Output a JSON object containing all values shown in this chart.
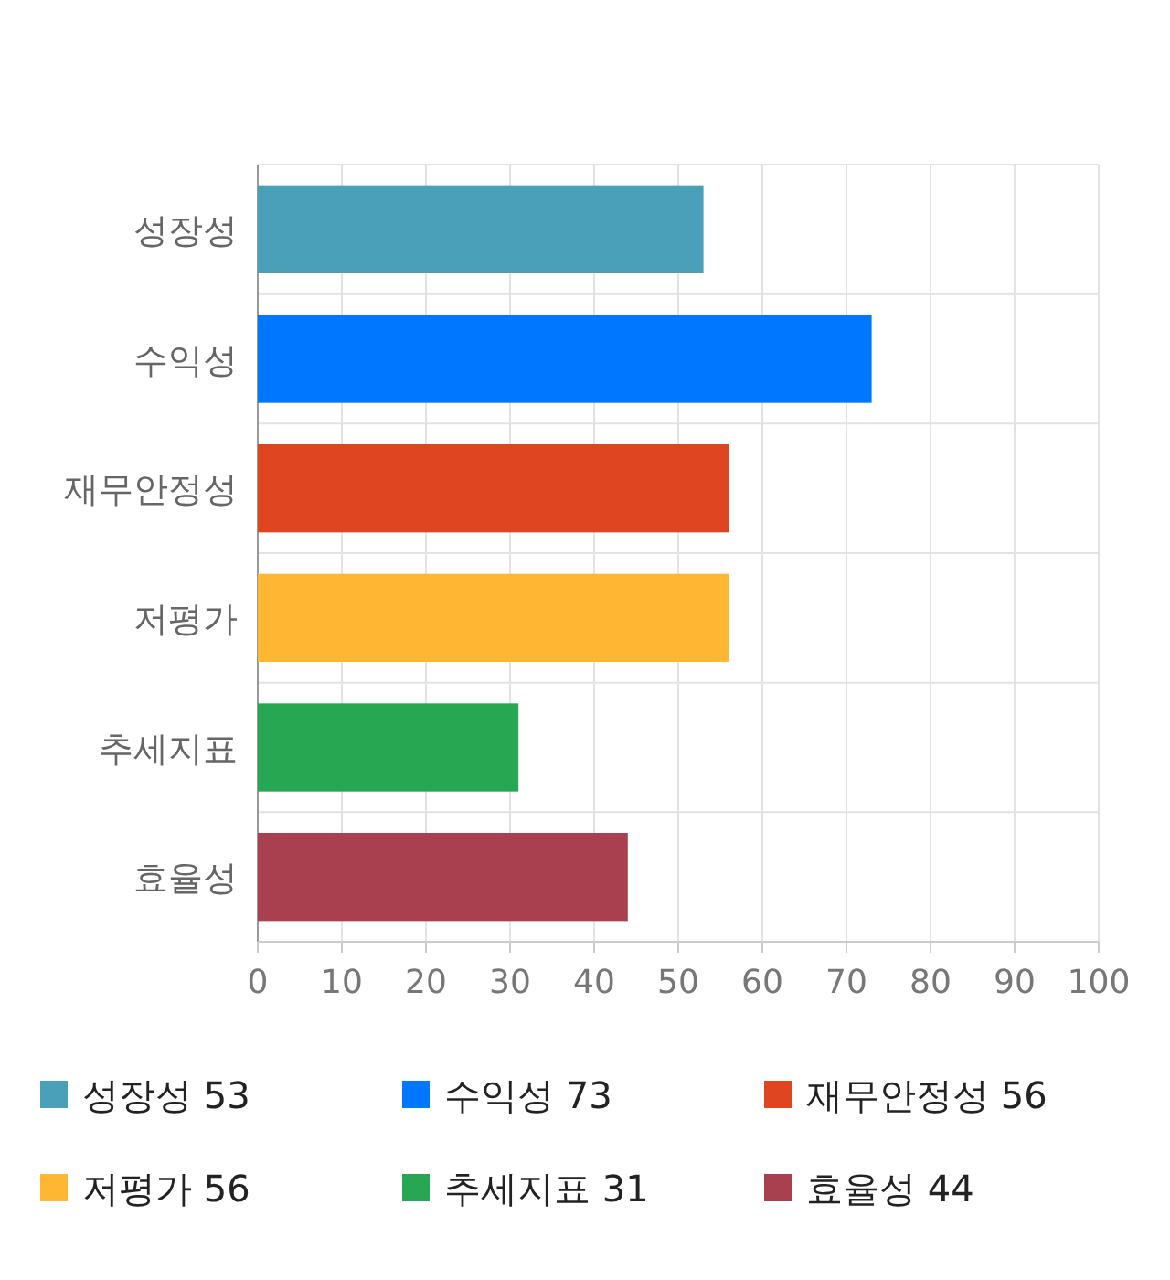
{
  "chart_data": {
    "type": "bar",
    "orientation": "horizontal",
    "stacked": true,
    "categories": [
      "성장성",
      "수익성",
      "재무안정성",
      "저평가",
      "추세지표",
      "효율성"
    ],
    "series": [
      {
        "name": "성장성 53",
        "color": "#4aa0b8",
        "values": [
          53,
          null,
          null,
          null,
          null,
          null
        ]
      },
      {
        "name": "수익성 73",
        "color": "#0077ff",
        "values": [
          null,
          73,
          null,
          null,
          null,
          null
        ]
      },
      {
        "name": "재무안정성 56",
        "color": "#e04522",
        "values": [
          null,
          null,
          56,
          null,
          null,
          null
        ]
      },
      {
        "name": "저평가 56",
        "color": "#ffb733",
        "values": [
          null,
          null,
          null,
          56,
          null,
          null
        ]
      },
      {
        "name": "추세지표 31",
        "color": "#28a753",
        "values": [
          null,
          null,
          null,
          null,
          31,
          null
        ]
      },
      {
        "name": "효율성 44",
        "color": "#a8404f",
        "values": [
          null,
          null,
          null,
          null,
          null,
          44
        ]
      }
    ],
    "xlim": [
      0,
      100
    ],
    "xticks": [
      0,
      10,
      20,
      30,
      40,
      50,
      60,
      70,
      80,
      90,
      100
    ],
    "grid": true,
    "legend": "bottom"
  }
}
